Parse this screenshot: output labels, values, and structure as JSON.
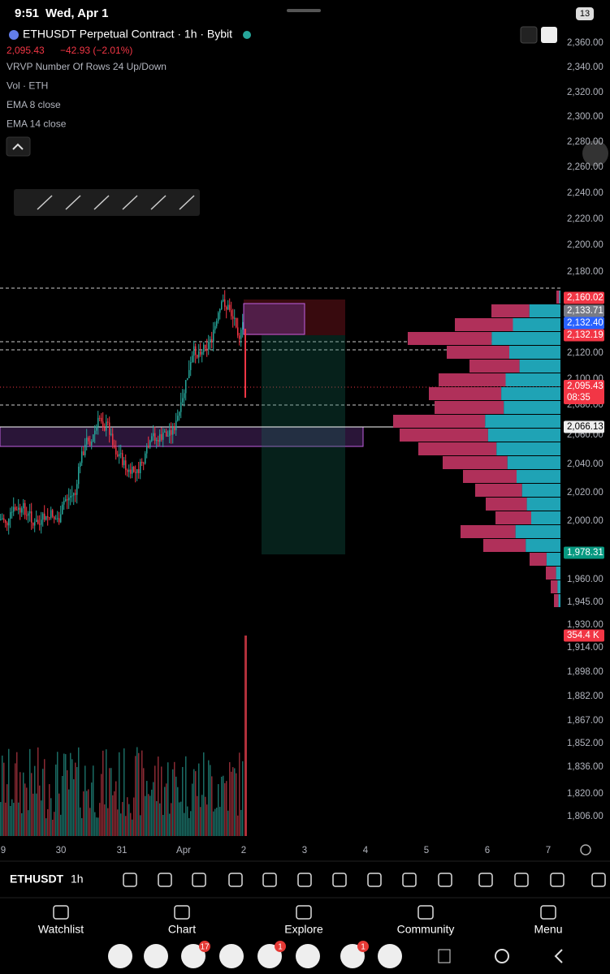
{
  "status_bar": {
    "time": "9:51",
    "date": "Wed, Apr 1",
    "notification_count": "13"
  },
  "header": {
    "symbol": "ETHUSDT Perpetual Contract · 1h · Bybit",
    "price": "2,095.43",
    "change": "−42.93 (−2.01%)"
  },
  "indicators": [
    "VRVP Number Of Rows 24 Up/Down",
    "Vol · ETH",
    "EMA 8 close",
    "EMA 14 close"
  ],
  "price_axis": [
    "2,360.00",
    "2,340.00",
    "2,320.00",
    "2,300.00",
    "2,280.00",
    "2,260.00",
    "2,240.00",
    "2,220.00",
    "2,200.00",
    "2,180.00",
    "2,120.00",
    "2,100.00",
    "2,080.00",
    "2,060.00",
    "2,040.00",
    "2,020.00",
    "2,000.00",
    "1,960.00",
    "1,945.00",
    "1,930.00"
  ],
  "volume_axis": [
    "1,914.00",
    "1,898.00",
    "1,882.00",
    "1,867.00",
    "1,852.00",
    "1,836.00",
    "1,820.00",
    "1,806.00"
  ],
  "price_tags": [
    {
      "label": "2,160.02"
    },
    {
      "label": "2,133.71"
    },
    {
      "label": "2,132.40"
    },
    {
      "label": "2,132.19"
    },
    {
      "label": "2,095.43",
      "sub": "08:35"
    },
    {
      "label": "2,066.13"
    },
    {
      "label": "1,978.31"
    },
    {
      "label": "354.4 K"
    }
  ],
  "time_axis": [
    "9",
    "30",
    "31",
    "Apr",
    "2",
    "3",
    "4",
    "5",
    "6",
    "7"
  ],
  "toolbar": {
    "symbol": "ETHUSDT",
    "interval": "1h"
  },
  "nav": [
    "Watchlist",
    "Chart",
    "Explore",
    "Community",
    "Menu"
  ],
  "app_badges": [
    "17",
    "1",
    "1"
  ]
}
